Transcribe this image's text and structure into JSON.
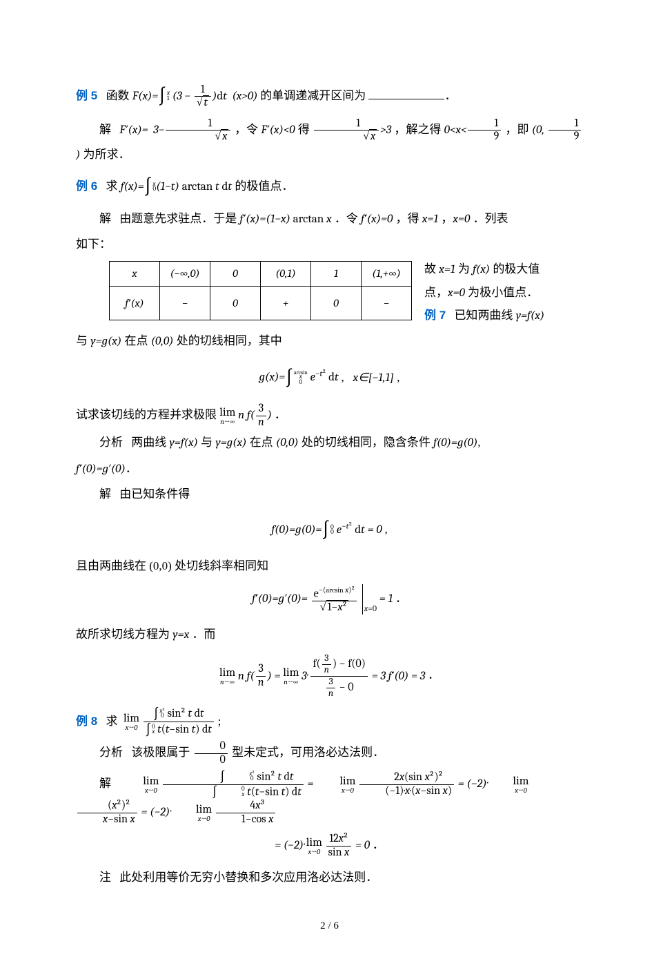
{
  "ex5": {
    "label": "例 5",
    "text_a": "函数 ",
    "formula": "F(x)=∫₁ˣ (3 − 1/√t) dt  (x>0)",
    "text_b": " 的单调递减开区间为",
    "solution_label": "解",
    "sol": "F′(x)= 3−1/√x ，令 F′(x)<0 得 1/√x >3 ，解之得 0<x<1/9 ，即 (0, 1/9) 为所求．"
  },
  "ex6": {
    "label": "例 6",
    "text": "求 f(x)=∫₀ˣ (1−t) arctan t dt 的极值点．",
    "sol_label": "解",
    "sol_text": "由题意先求驻点．于是 f′(x)=(1−x) arctan x ．令 f′(x)=0 ，得 x=1 ，x=0 ．列表",
    "after_table1": "故 x=1 为 f(x) 的极大值",
    "after_table2": "点， x=0 为极小值点．",
    "table": {
      "headers": [
        "x",
        "(−∞,0)",
        "0",
        "(0,1)",
        "1",
        "(1,+∞)"
      ],
      "row_label": "f′(x)",
      "row": [
        "−",
        "0",
        "+",
        "0",
        "−"
      ]
    },
    "ru_xia": "如下："
  },
  "ex7": {
    "label": "例 7",
    "text1": "已知两曲线 y=f(x)",
    "text2": "与 y=g(x) 在点 (0,0) 处的切线相同，其中",
    "gdef": "g(x)=∫₀^{arcsin x} e^{−t²} dt ,   x∈[−1,1] ,",
    "text3": "试求该切线的方程并求极限 ",
    "lim_expr": "lim_{n→∞} n f(3/n)",
    "period": "．",
    "analysis_label": "分析",
    "analysis": "两曲线 y=f(x) 与 y=g(x) 在点 (0,0) 处的切线相同，隐含条件 f(0)=g(0) ,",
    "analysis2": "f′(0)=g′(0) ．",
    "sol_label": "解",
    "sol_intro": "由已知条件得",
    "eq1": "f(0)=g(0)=∫₀⁰ e^{−t²} dt = 0 ,",
    "mid1": "且由两曲线在 (0,0) 处切线斜率相同知",
    "eq2": "f′(0)=g′(0)= e^{−(arcsin x)²}/√(1−x²) |_{x=0} = 1 ．",
    "mid2": "故所求切线方程为 y=x ．而",
    "eq3": "lim_{n→∞} n f(3/n) = lim_{n→∞} 3·[f(3/n)−f(0)] / (3/n − 0) = 3 f′(0) = 3 ．"
  },
  "ex8": {
    "label": "例 8",
    "prompt": "求  lim_{x→0}  ∫₀^{x²} sin² t dt  /  ∫ₓ⁰ t(t−sin t) dt  ;",
    "analysis_label": "分析",
    "analysis": "该极限属于 0/0 型未定式，可用洛必达法则．",
    "sol_label": "解",
    "line1": "lim_{x→0} ∫₀^{x²} sin² t dt / ∫ₓ⁰ t(t−sin t) dt = lim_{x→0} 2x(sin x²)² / [(−1)·x·(x−sin x)] = (−2)·lim_{x→0} (x²)² /(x−sin x) = (−2)·lim_{x→0} 4x³/(1−cos x)",
    "line2": "= (−2)·lim_{x→0} 12x² / sin x = 0 ．",
    "note_label": "注",
    "note": "此处利用等价无穷小替换和多次应用洛必达法则．"
  },
  "colors": {
    "example_label": "#0563c1",
    "text": "#000000",
    "background": "#ffffff"
  },
  "typography": {
    "body_fontsize_pt": 12,
    "chinese_font": "SimSun",
    "label_font": "SimHei"
  },
  "page": {
    "current": "2",
    "total": "6",
    "sep": " / "
  }
}
